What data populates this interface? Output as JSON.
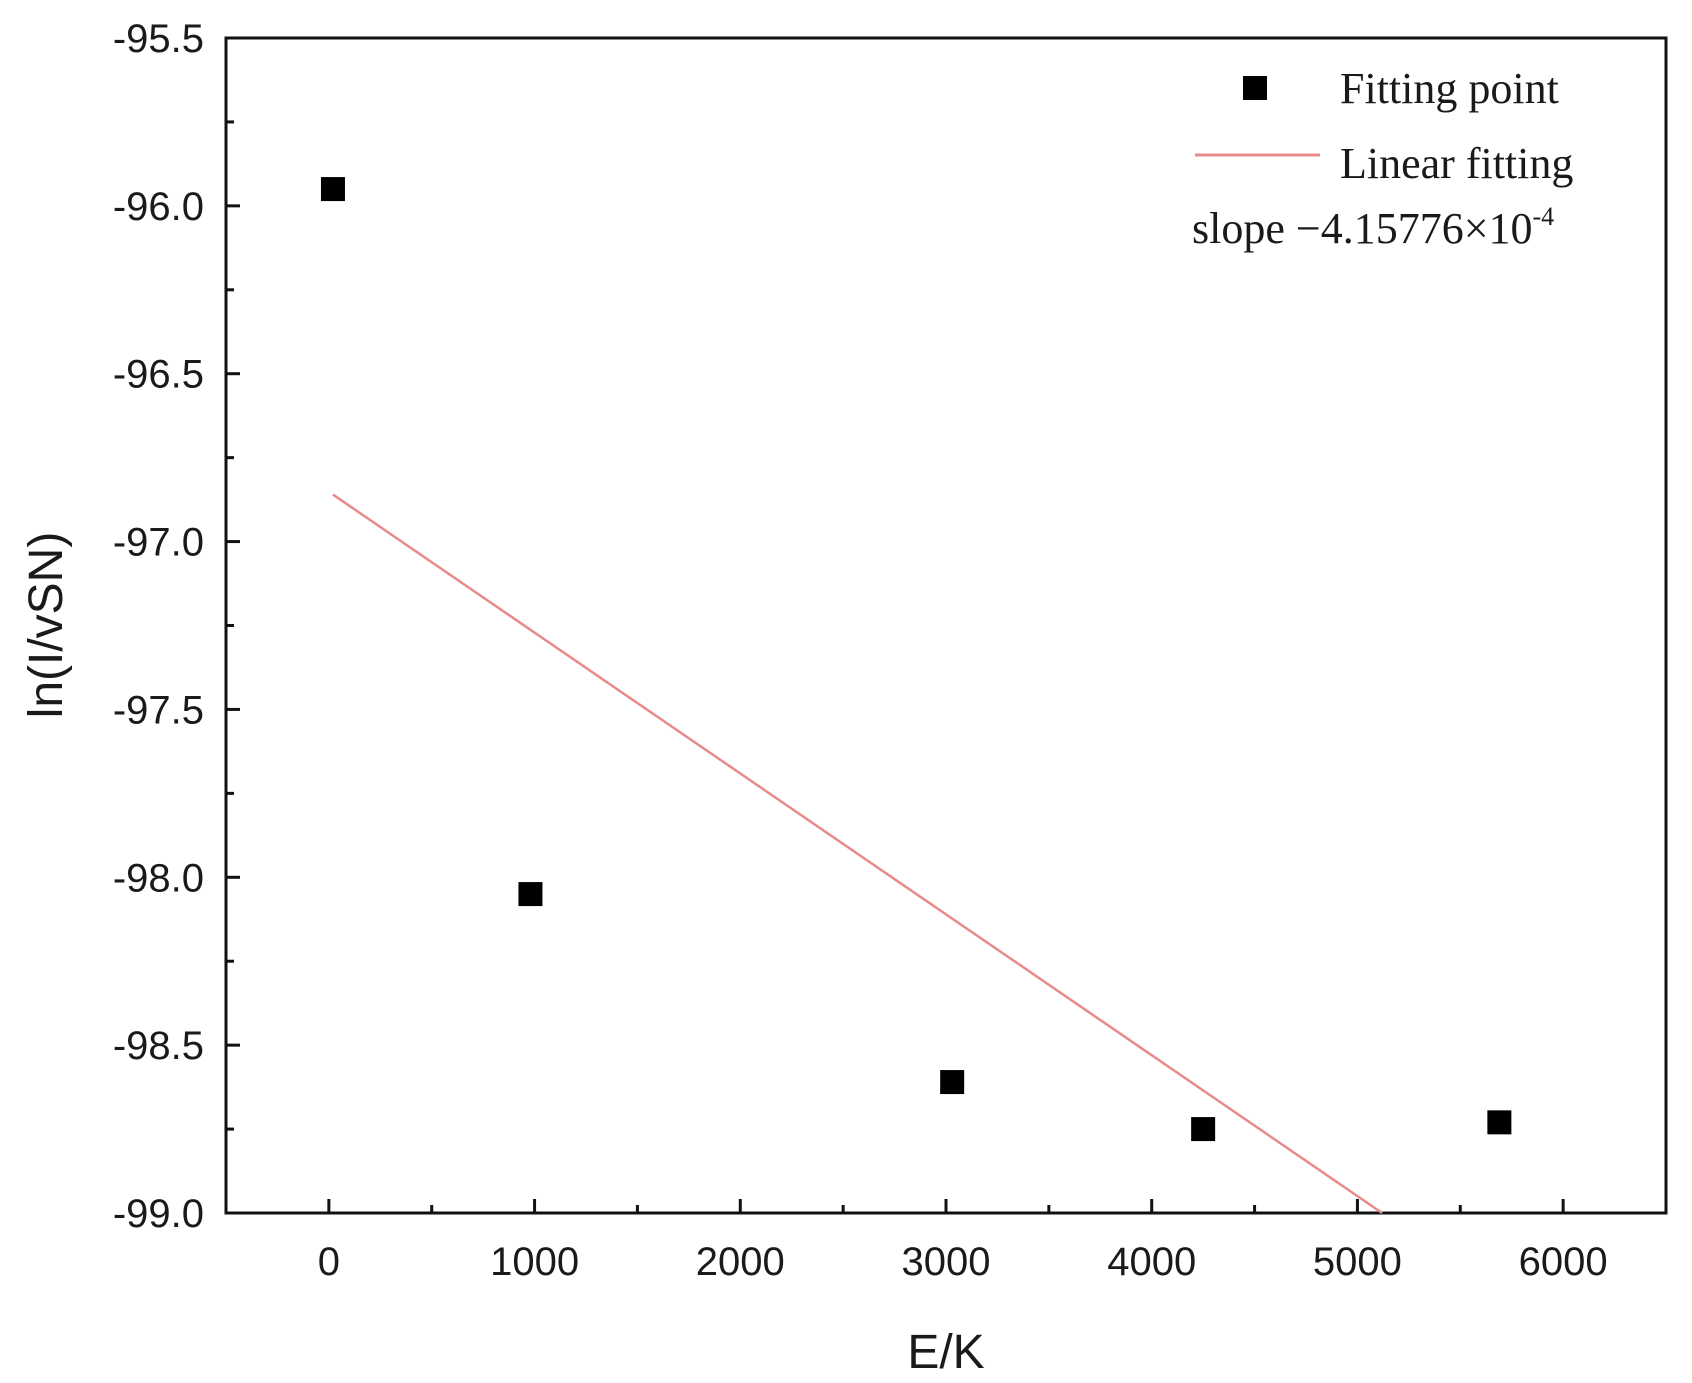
{
  "chart_data": {
    "type": "scatter",
    "xlabel": "E/K",
    "ylabel": "ln(I/vSN)",
    "xlim": [
      -500,
      6500
    ],
    "ylim": [
      -99.0,
      -95.5
    ],
    "x_ticks": [
      "0",
      "1000",
      "2000",
      "3000",
      "4000",
      "5000",
      "6000"
    ],
    "y_ticks": [
      "-95.5",
      "-96.0",
      "-96.5",
      "-97.0",
      "-97.5",
      "-98.0",
      "-98.5",
      "-99.0"
    ],
    "grid": false,
    "legend_position": "top-right",
    "series": [
      {
        "name": "Fitting point",
        "kind": "scatter",
        "color": "#000000",
        "marker": "square",
        "points": [
          {
            "x": 20,
            "y": -95.95
          },
          {
            "x": 980,
            "y": -98.05
          },
          {
            "x": 3030,
            "y": -98.61
          },
          {
            "x": 4250,
            "y": -98.75
          },
          {
            "x": 5690,
            "y": -98.73
          }
        ]
      },
      {
        "name": "Linear fitting",
        "kind": "line",
        "color": "#e88a8a",
        "points": [
          {
            "x": 20,
            "y": -96.86
          },
          {
            "x": 5120,
            "y": -99.0
          }
        ]
      }
    ],
    "annotation": {
      "prefix": "slope −4.15776×10",
      "exponent": "-4"
    }
  }
}
